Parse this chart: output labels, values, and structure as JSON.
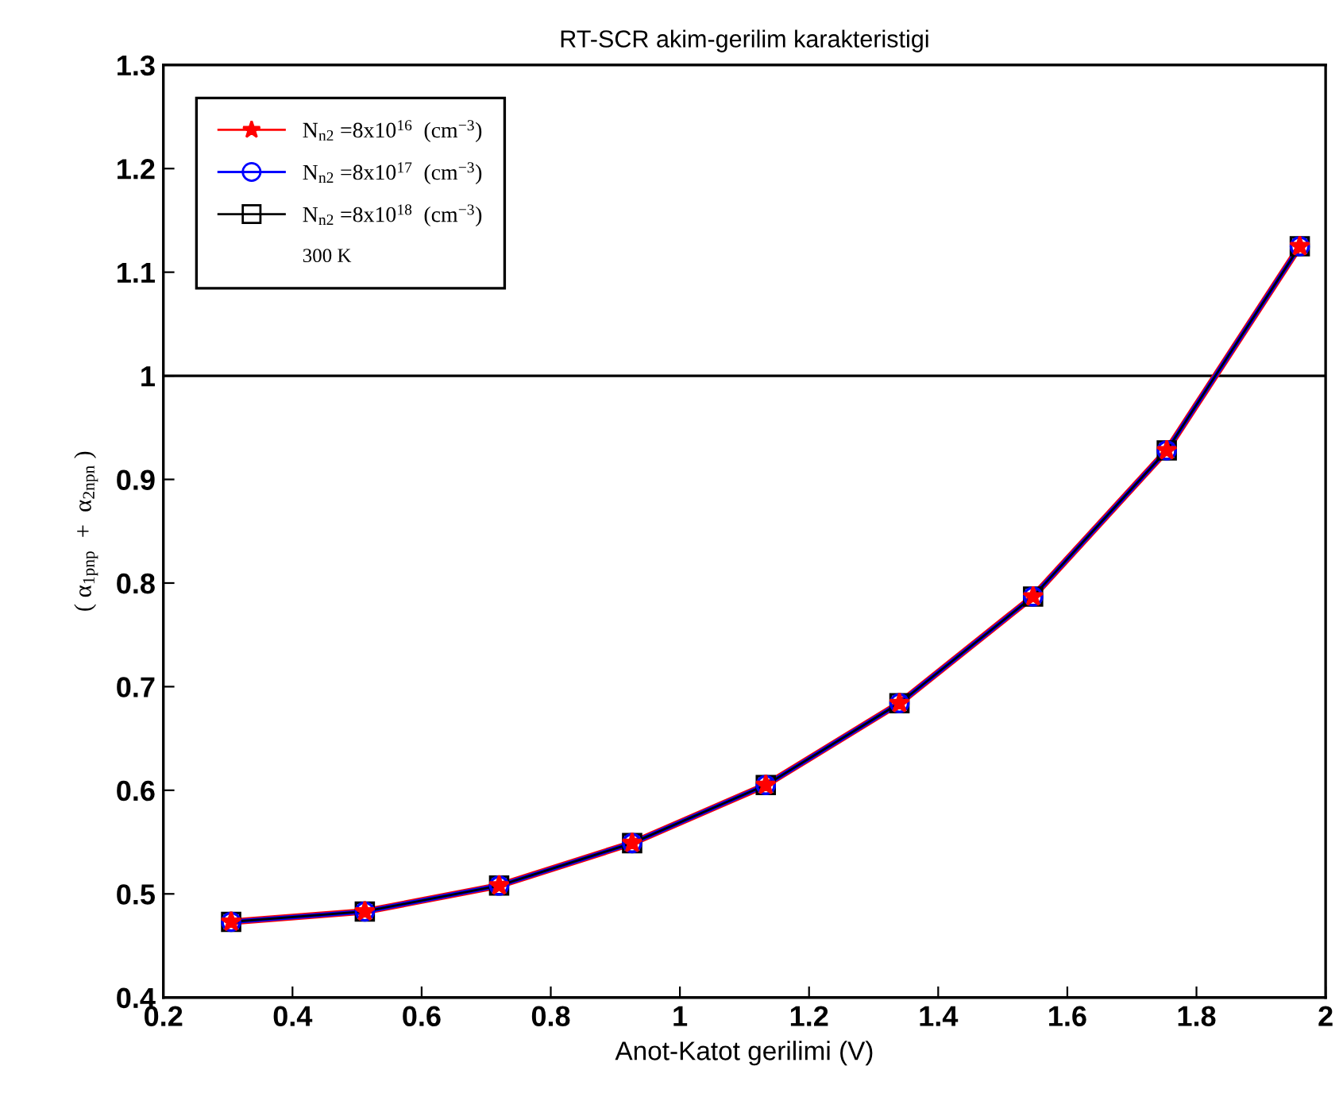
{
  "chart_data": {
    "type": "line",
    "title": "RT-SCR akim-gerilim karakteristigi",
    "xlabel": "Anot-Katot gerilimi (V)",
    "ylabel": "( α$_{1pnp}$  +  α$_{2npn}$ )",
    "x": [
      0.305,
      0.512,
      0.72,
      0.926,
      1.133,
      1.34,
      1.547,
      1.754,
      1.96
    ],
    "series": [
      {
        "name": "N$_{n2}$ =8x10$^{16}$  (cm$^{−3}$)",
        "color": "#ff0000",
        "marker": "star",
        "values": [
          0.473,
          0.483,
          0.508,
          0.549,
          0.605,
          0.684,
          0.787,
          0.928,
          1.125
        ]
      },
      {
        "name": "N$_{n2}$ =8x10$^{17}$  (cm$^{−3}$)",
        "color": "#0000ff",
        "marker": "circle",
        "values": [
          0.473,
          0.483,
          0.508,
          0.549,
          0.605,
          0.684,
          0.787,
          0.928,
          1.125
        ]
      },
      {
        "name": "N$_{n2}$ =8x10$^{18}$  (cm$^{−3}$)",
        "color": "#000000",
        "marker": "square",
        "values": [
          0.473,
          0.483,
          0.508,
          0.549,
          0.605,
          0.684,
          0.787,
          0.928,
          1.125
        ]
      }
    ],
    "annotations": [
      "300 K"
    ],
    "ref_lines": [
      {
        "axis": "y",
        "value": 1,
        "color": "#000000"
      }
    ],
    "xlim": [
      0.2,
      2
    ],
    "xticks": [
      0.2,
      0.4,
      0.6,
      0.8,
      1,
      1.2,
      1.4,
      1.6,
      1.8,
      2
    ],
    "ylim": [
      0.4,
      1.3
    ],
    "yticks": [
      0.4,
      0.5,
      0.6,
      0.7,
      0.8,
      0.9,
      1,
      1.1,
      1.2,
      1.3
    ],
    "grid": false,
    "legend": "top left",
    "line_style": "solid"
  }
}
